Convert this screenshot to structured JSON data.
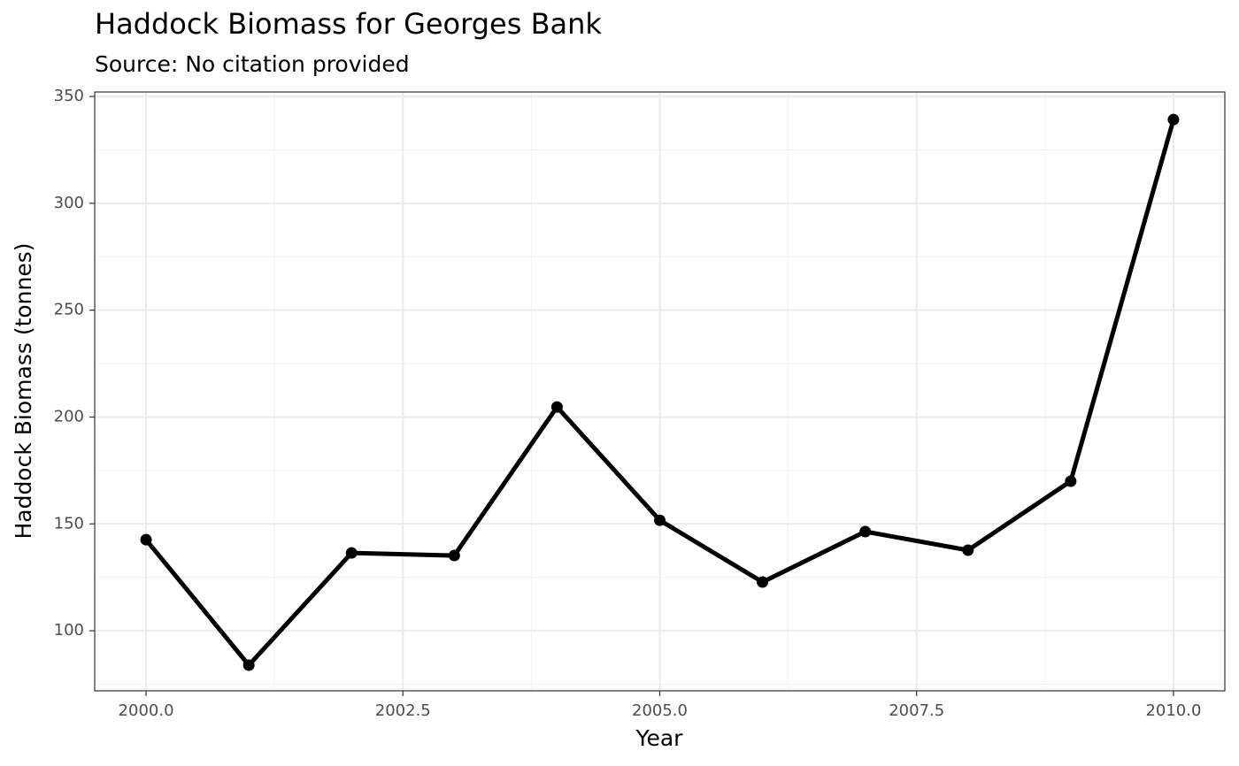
{
  "chart_data": {
    "type": "line",
    "title": "Haddock Biomass for Georges Bank",
    "subtitle": "Source: No citation provided",
    "x_label": "Year",
    "y_label": "Haddock Biomass (tonnes)",
    "x": [
      2000,
      2001,
      2002,
      2003,
      2004,
      2005,
      2006,
      2007,
      2008,
      2009,
      2010
    ],
    "series": [
      {
        "name": "Haddock Biomass",
        "color": "#000000",
        "values": [
          142.6,
          83.9,
          136.4,
          135.2,
          204.7,
          151.7,
          122.8,
          146.4,
          137.7,
          170.0,
          339.2
        ]
      }
    ],
    "xlim": [
      1999.5,
      2010.5
    ],
    "ylim": [
      71.9,
      352.1
    ],
    "xticks": [
      {
        "value": 2000,
        "label": "2000.0"
      },
      {
        "value": 2002.5,
        "label": "2002.5"
      },
      {
        "value": 2005,
        "label": "2005.0"
      },
      {
        "value": 2007.5,
        "label": "2007.5"
      },
      {
        "value": 2010,
        "label": "2010.0"
      }
    ],
    "yticks": [
      100,
      150,
      200,
      250,
      300,
      350
    ],
    "grid": true
  }
}
